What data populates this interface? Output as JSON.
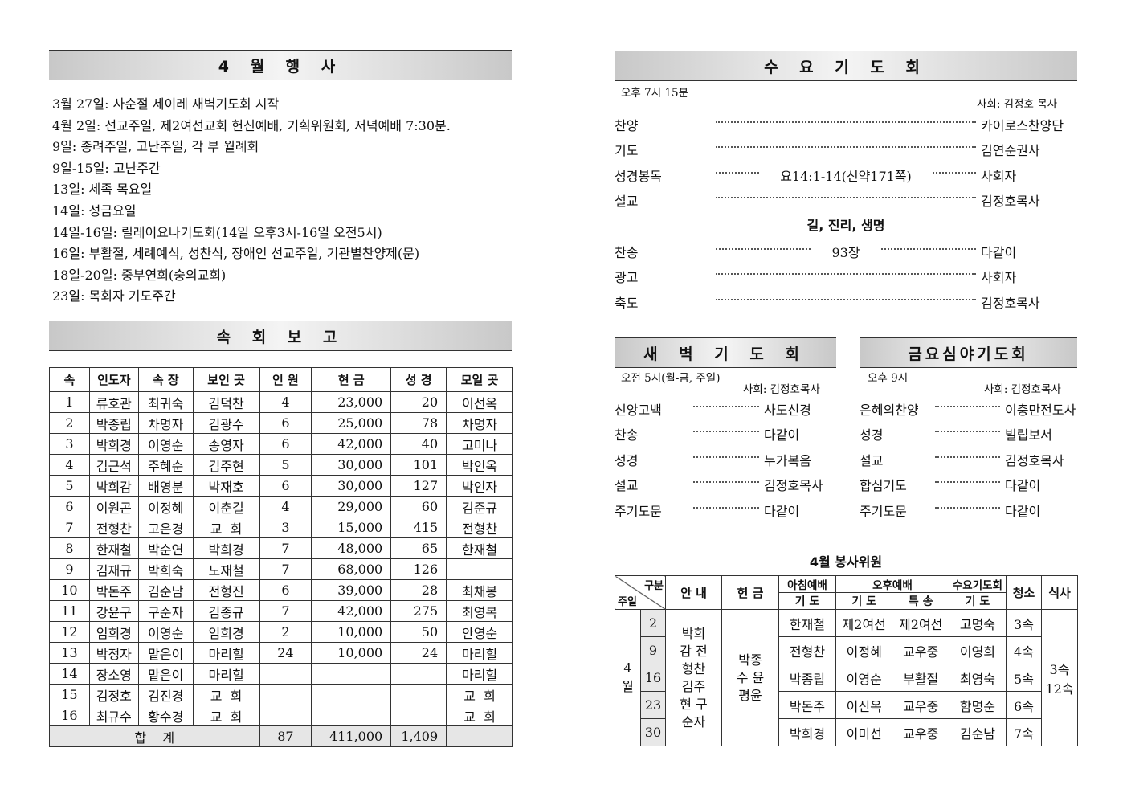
{
  "april_events": {
    "title": "4 월 행 사",
    "items": [
      "3월 27일: 사순절 세이레 새벽기도회 시작",
      "4월 2일: 선교주일, 제2여선교회 헌신예배, 기획위원회, 저녁예배 7:30분.",
      "9일: 종려주일, 고난주일, 각 부 월례회",
      "9일-15일: 고난주간",
      "13일: 세족 목요일",
      "14일: 성금요일",
      "14일-16일: 릴레이요나기도회(14일 오후3시-16일 오전5시)",
      "16일: 부활절, 세례예식, 성찬식, 장애인 선교주일, 기관별찬양제(문)",
      "18일-20일: 중부연회(숭의교회)",
      "23일: 목회자 기도주간"
    ]
  },
  "cell_report": {
    "title": "속 회 보 고",
    "headers": [
      "속",
      "인도자",
      "속 장",
      "보인 곳",
      "인 원",
      "현 금",
      "성 경",
      "모일 곳"
    ],
    "rows": [
      [
        "1",
        "류호관",
        "최귀숙",
        "김덕찬",
        "4",
        "23,000",
        "20",
        "이선옥"
      ],
      [
        "2",
        "박종립",
        "차명자",
        "김광수",
        "6",
        "25,000",
        "78",
        "차명자"
      ],
      [
        "3",
        "박희경",
        "이영순",
        "송영자",
        "6",
        "42,000",
        "40",
        "고미나"
      ],
      [
        "4",
        "김근석",
        "주혜순",
        "김주현",
        "5",
        "30,000",
        "101",
        "박인옥"
      ],
      [
        "5",
        "박희감",
        "배영분",
        "박재호",
        "6",
        "30,000",
        "127",
        "박인자"
      ],
      [
        "6",
        "이원곤",
        "이정혜",
        "이춘길",
        "4",
        "29,000",
        "60",
        "김준규"
      ],
      [
        "7",
        "전형찬",
        "고은경",
        "교  회",
        "3",
        "15,000",
        "415",
        "전형찬"
      ],
      [
        "8",
        "한재철",
        "박순연",
        "박희경",
        "7",
        "48,000",
        "65",
        "한재철"
      ],
      [
        "9",
        "김재규",
        "박희숙",
        "노재철",
        "7",
        "68,000",
        "126",
        ""
      ],
      [
        "10",
        "박돈주",
        "김순남",
        "전형진",
        "6",
        "39,000",
        "28",
        "최채봉"
      ],
      [
        "11",
        "강윤구",
        "구순자",
        "김종규",
        "7",
        "42,000",
        "275",
        "최영복"
      ],
      [
        "12",
        "임희경",
        "이영순",
        "임희경",
        "2",
        "10,000",
        "50",
        "안영순"
      ],
      [
        "13",
        "박정자",
        "맡은이",
        "마리힐",
        "24",
        "10,000",
        "24",
        "마리힐"
      ],
      [
        "14",
        "장소영",
        "맡은이",
        "마리힐",
        "",
        "",
        "",
        "마리힐"
      ],
      [
        "15",
        "김정호",
        "김진경",
        "교  회",
        "",
        "",
        "",
        "교  회"
      ],
      [
        "16",
        "최규수",
        "황수경",
        "교  회",
        "",
        "",
        "",
        "교  회"
      ]
    ],
    "total": {
      "label": "합    계",
      "people": "87",
      "offering": "411,000",
      "bible": "1,409"
    }
  },
  "wednesday": {
    "title": "수 요 기 도 회",
    "time": "오후 7시 15분",
    "host": "사회: 김정호 목사",
    "sermon_title": "길, 진리, 생명",
    "items": [
      {
        "label": "찬양",
        "value": "카이로스찬양단"
      },
      {
        "label": "기도",
        "value": "김연순권사"
      },
      {
        "label": "성경봉독",
        "middle": "요14:1-14(신약171쪽)",
        "value": "사회자"
      },
      {
        "label": "설교",
        "value": "김정호목사"
      },
      {
        "label": "찬송",
        "middle": "93장",
        "value": "다같이"
      },
      {
        "label": "광고",
        "value": "사회자"
      },
      {
        "label": "축도",
        "value": "김정호목사"
      }
    ]
  },
  "dawn": {
    "title": "새 벽 기 도 회",
    "time": "오전 5시(월-금, 주일)",
    "host": "사회: 김정호목사",
    "items": [
      {
        "label": "신앙고백",
        "value": "사도신경"
      },
      {
        "label": "찬송",
        "value": "다같이"
      },
      {
        "label": "성경",
        "value": "누가복음"
      },
      {
        "label": "설교",
        "value": "김정호목사"
      },
      {
        "label": "주기도문",
        "value": "다같이"
      }
    ]
  },
  "friday": {
    "title": "금요심야기도회",
    "time": "오후 9시",
    "host": "사회: 김정호목사",
    "items": [
      {
        "label": "은혜의찬양",
        "value": "이충만전도사"
      },
      {
        "label": "성경",
        "value": "빌립보서"
      },
      {
        "label": "설교",
        "value": "김정호목사"
      },
      {
        "label": "합심기도",
        "value": "다같이"
      },
      {
        "label": "주기도문",
        "value": "다같이"
      }
    ]
  },
  "volunteers": {
    "title": "4월 봉사위원",
    "corner_top": "구분",
    "corner_bottom": "주일",
    "h_guide": "안 내",
    "h_offering": "헌 금",
    "h_morning": "아침예배",
    "h_afternoon": "오후예배",
    "h_wed": "수요기도회",
    "h_clean": "청소",
    "h_meal": "식사",
    "h_prayer": "기 도",
    "h_special": "특 송",
    "month": "4월",
    "guides": "박희감 전형찬 김주현 구순자",
    "offering": "박종수 윤평윤",
    "meal": "3속 12속",
    "rows": [
      [
        "2",
        "한재철",
        "제2여선",
        "제2여선",
        "고명숙",
        "3속"
      ],
      [
        "9",
        "전형찬",
        "이정혜",
        "교우중",
        "이영희",
        "4속"
      ],
      [
        "16",
        "박종립",
        "이영순",
        "부활절",
        "최영숙",
        "5속"
      ],
      [
        "23",
        "박돈주",
        "이신옥",
        "교우중",
        "함명순",
        "6속"
      ],
      [
        "30",
        "박희경",
        "이미선",
        "교우중",
        "김순남",
        "7속"
      ]
    ]
  }
}
